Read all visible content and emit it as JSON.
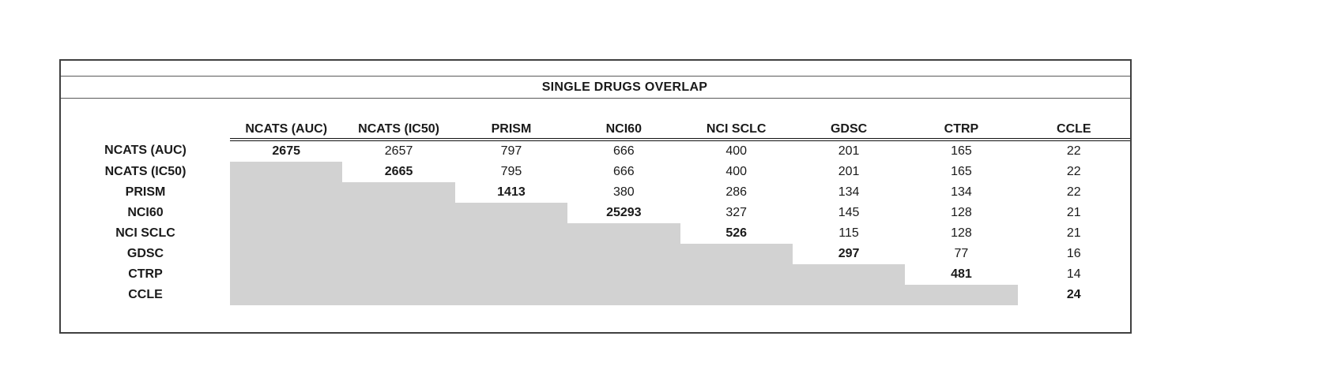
{
  "title": "SINGLE DRUGS OVERLAP",
  "matrix": {
    "columns": [
      "NCATS (AUC)",
      "NCATS (IC50)",
      "PRISM",
      "NCI60",
      "NCI SCLC",
      "GDSC",
      "CTRP",
      "CCLE"
    ],
    "rows": [
      {
        "label": "NCATS (AUC)",
        "values": [
          "2675",
          "2657",
          "797",
          "666",
          "400",
          "201",
          "165",
          "22"
        ]
      },
      {
        "label": "NCATS (IC50)",
        "values": [
          "",
          "2665",
          "795",
          "666",
          "400",
          "201",
          "165",
          "22"
        ]
      },
      {
        "label": "PRISM",
        "values": [
          "",
          "",
          "1413",
          "380",
          "286",
          "134",
          "134",
          "22"
        ]
      },
      {
        "label": "NCI60",
        "values": [
          "",
          "",
          "",
          "25293",
          "327",
          "145",
          "128",
          "21"
        ]
      },
      {
        "label": "NCI SCLC",
        "values": [
          "",
          "",
          "",
          "",
          "526",
          "115",
          "128",
          "21"
        ]
      },
      {
        "label": "GDSC",
        "values": [
          "",
          "",
          "",
          "",
          "",
          "297",
          "77",
          "16"
        ]
      },
      {
        "label": "CTRP",
        "values": [
          "",
          "",
          "",
          "",
          "",
          "",
          "481",
          "14"
        ]
      },
      {
        "label": "CCLE",
        "values": [
          "",
          "",
          "",
          "",
          "",
          "",
          "",
          "24"
        ]
      }
    ],
    "diagonal_is_bold": true,
    "shade_note": "lower triangle shaded"
  },
  "colors": {
    "shade": "#d2d2d2",
    "outer_border": "#404040",
    "inner_rule": "#595959",
    "header_double_rule": "#111111",
    "text": "#1a1a1a"
  }
}
